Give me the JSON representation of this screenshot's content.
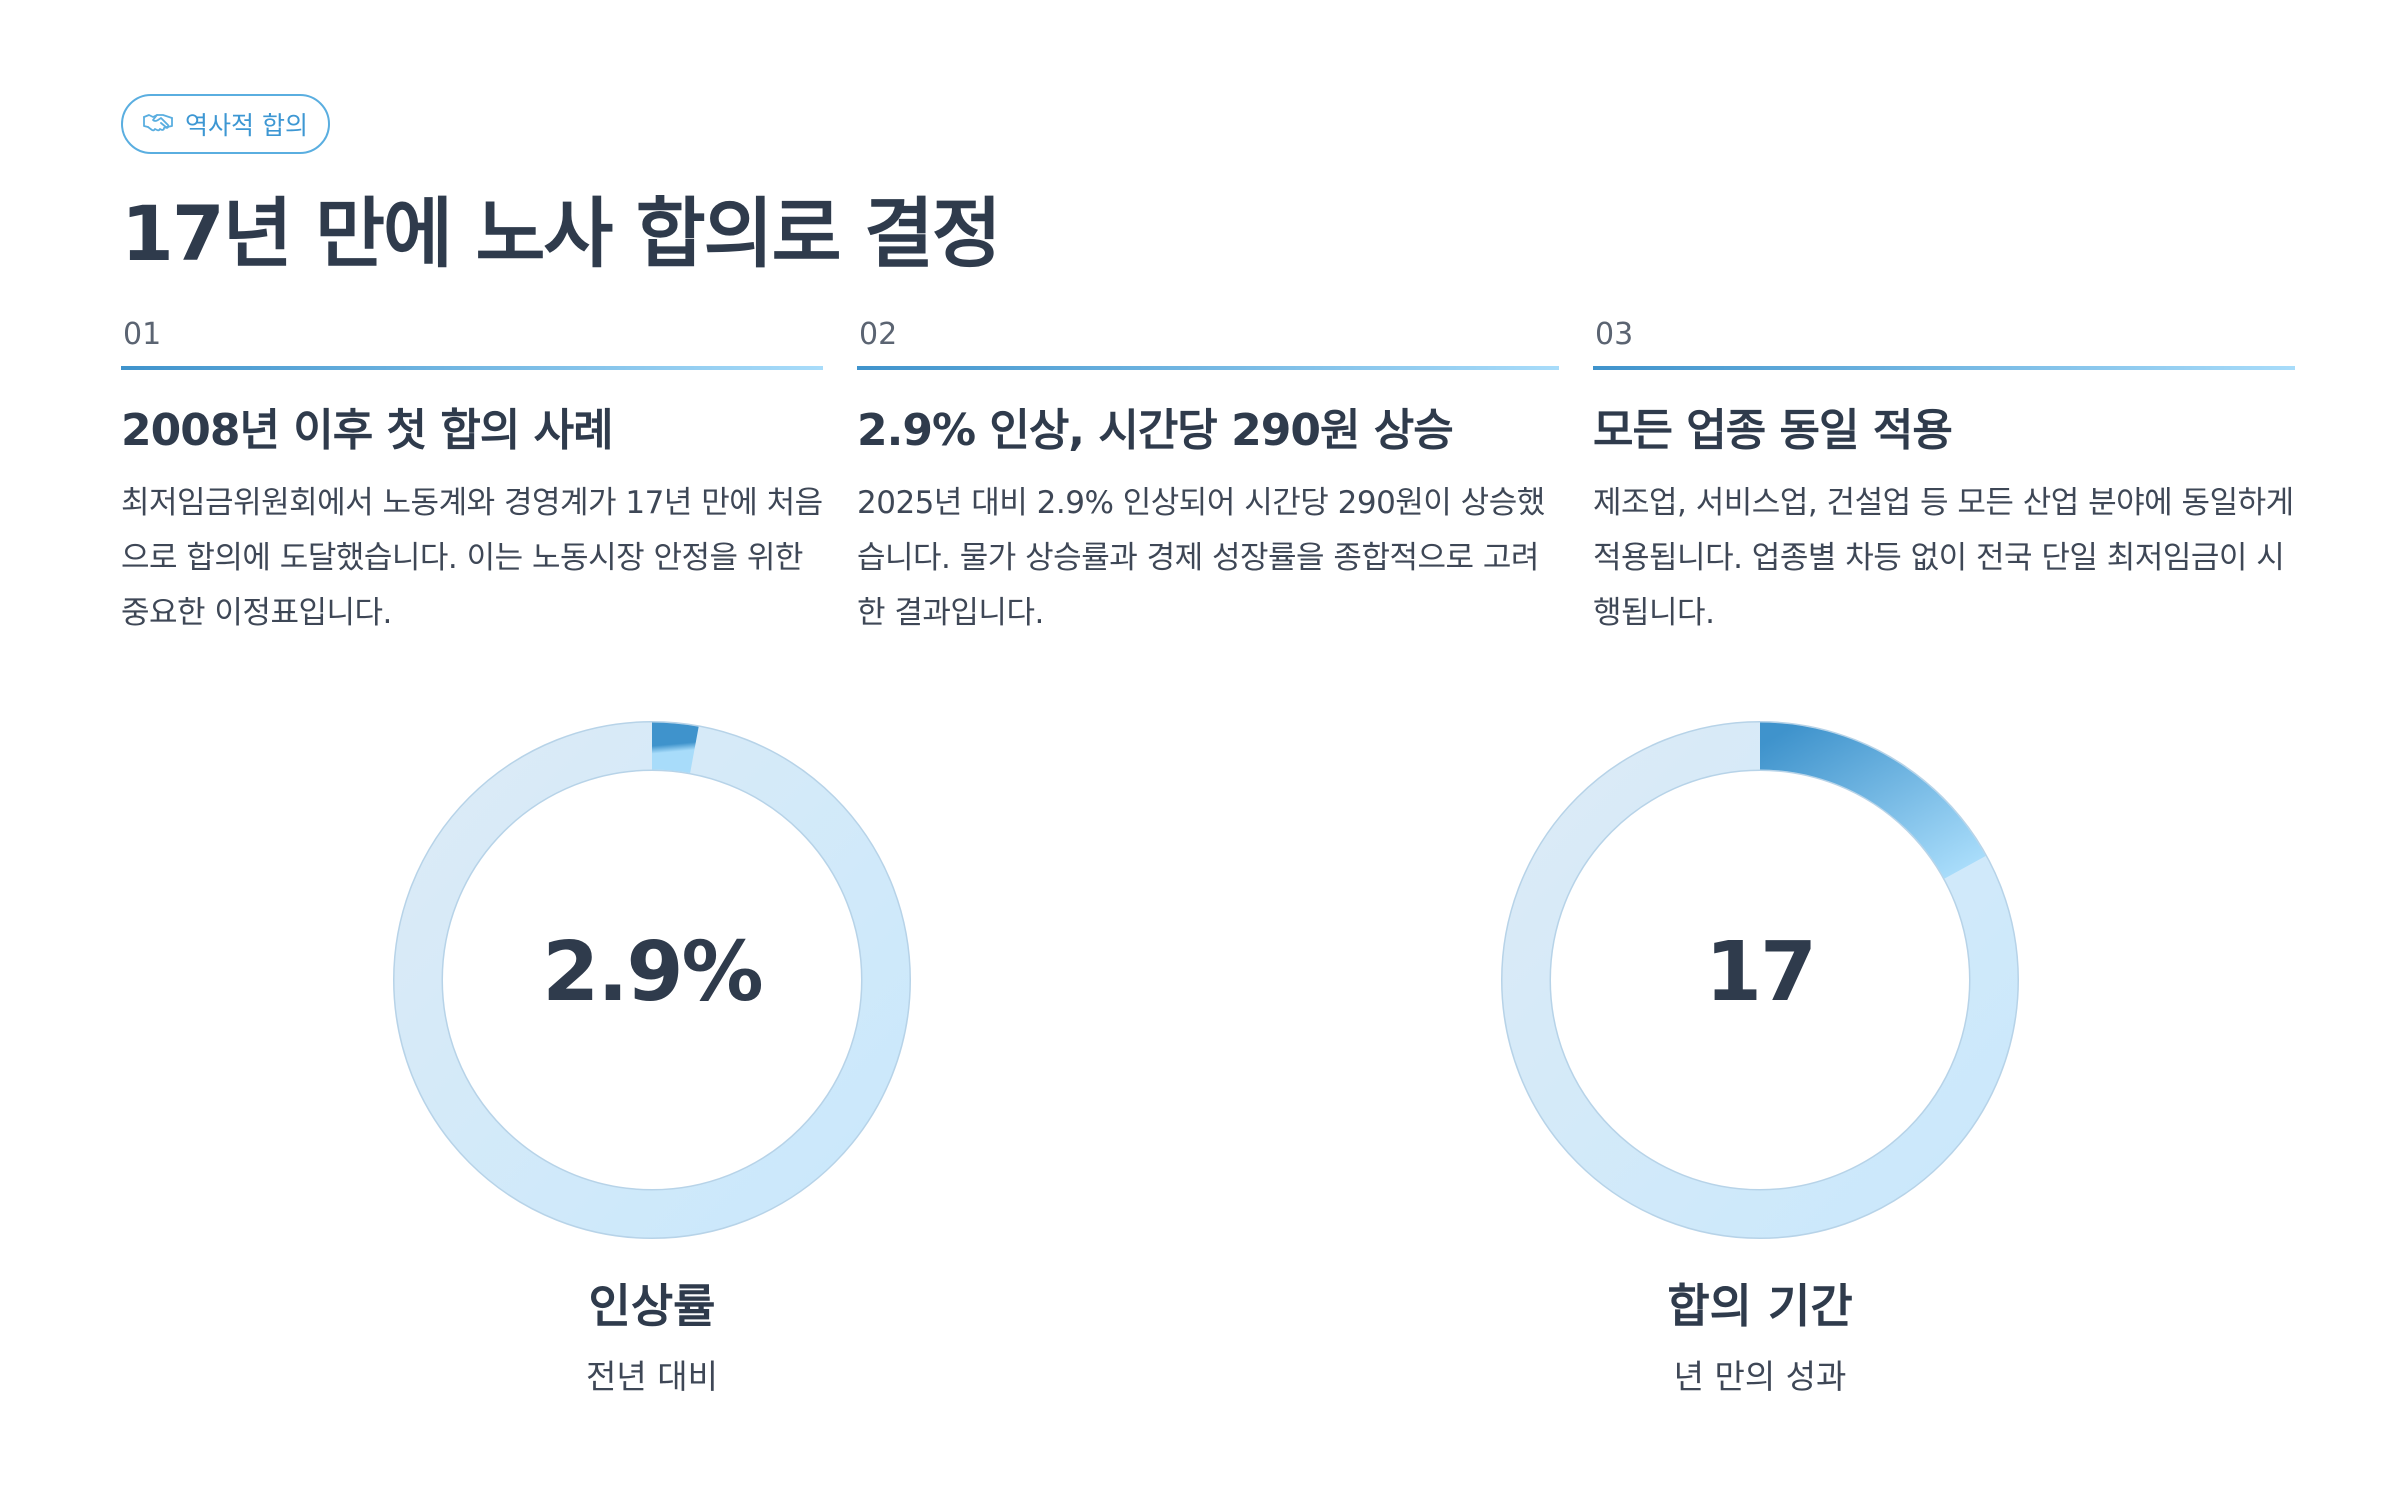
{
  "badge": {
    "icon": "handshake-icon",
    "label": "역사적 합의"
  },
  "title": "17년 만에 노사 합의로 결정",
  "columns": [
    {
      "num": "01",
      "heading": "2008년 이후 첫 합의 사례",
      "desc": "최저임금위원회에서 노동계와 경영계가 17년 만에 처음으로 합의에 도달했습니다. 이는 노동시장 안정을 위한 중요한 이정표입니다."
    },
    {
      "num": "02",
      "heading": "2.9% 인상, 시간당 290원 상승",
      "desc": "2025년 대비 2.9% 인상되어 시간당 290원이 상승했습니다. 물가 상승률과 경제 성장률을 종합적으로 고려한 결과입니다."
    },
    {
      "num": "03",
      "heading": "모든 업종 동일 적용",
      "desc": "제조업, 서비스업, 건설업 등 모든 산업 분야에 동일하게 적용됩니다. 업종별 차등 없이 전국 단일 최저임금이 시행됩니다."
    }
  ],
  "stats": [
    {
      "value": "2.9%",
      "fraction": 0.029,
      "label": "인상률",
      "sub": "전년 대비"
    },
    {
      "value": "17",
      "fraction": 0.17,
      "label": "합의 기간",
      "sub": "년 만의 성과"
    }
  ],
  "colors": {
    "accent_start": "#3f93cc",
    "accent_end": "#a8dcfa",
    "ring_track": "#d3e8f7",
    "text": "#2f3b4c"
  }
}
